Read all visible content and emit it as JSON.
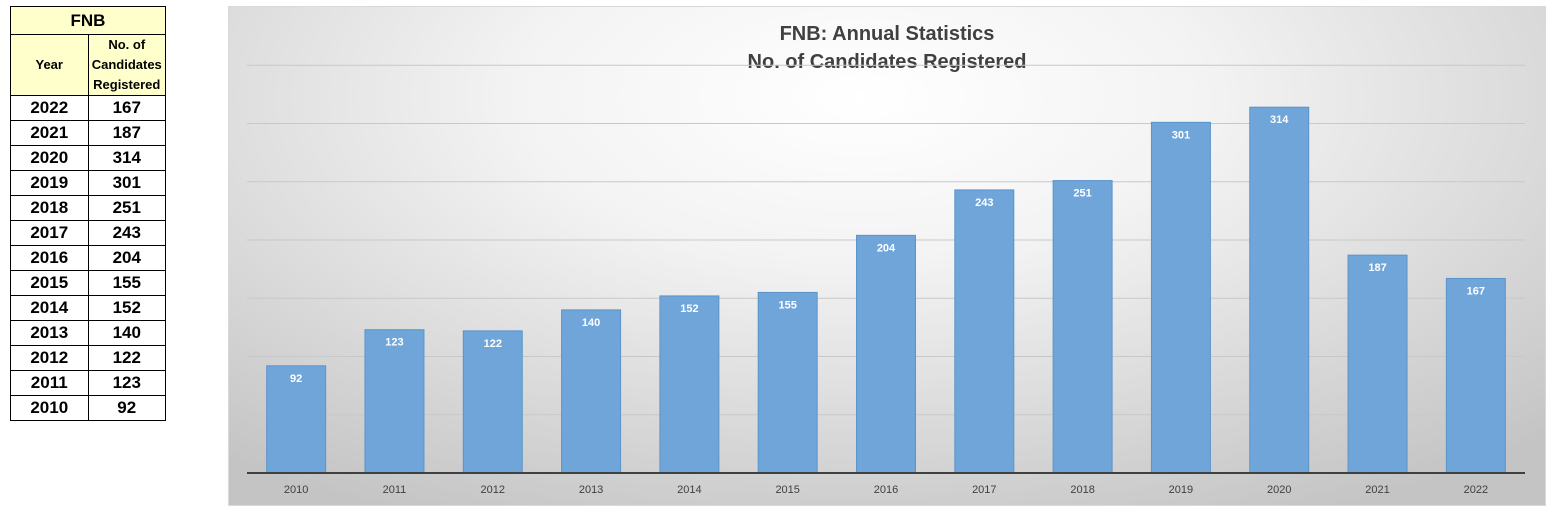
{
  "table": {
    "title": "FNB",
    "year_header": "Year",
    "count_header_lines": [
      "No. of",
      "Candidates",
      "Registered"
    ],
    "rows": [
      {
        "year": "2022",
        "count": "167"
      },
      {
        "year": "2021",
        "count": "187"
      },
      {
        "year": "2020",
        "count": "314"
      },
      {
        "year": "2019",
        "count": "301"
      },
      {
        "year": "2018",
        "count": "251"
      },
      {
        "year": "2017",
        "count": "243"
      },
      {
        "year": "2016",
        "count": "204"
      },
      {
        "year": "2015",
        "count": "155"
      },
      {
        "year": "2014",
        "count": "152"
      },
      {
        "year": "2013",
        "count": "140"
      },
      {
        "year": "2012",
        "count": "122"
      },
      {
        "year": "2011",
        "count": "123"
      },
      {
        "year": "2010",
        "count": "92"
      }
    ]
  },
  "chart_data": {
    "type": "bar",
    "title_lines": [
      "FNB: Annual Statistics",
      "No. of Candidates Registered"
    ],
    "categories": [
      "2010",
      "2011",
      "2012",
      "2013",
      "2014",
      "2015",
      "2016",
      "2017",
      "2018",
      "2019",
      "2020",
      "2021",
      "2022"
    ],
    "values": [
      92,
      123,
      122,
      140,
      152,
      155,
      204,
      243,
      251,
      301,
      314,
      187,
      167
    ],
    "xlabel": "",
    "ylabel": "",
    "ylim": [
      0,
      400
    ],
    "gridlines": true,
    "data_labels": true,
    "bar_color": "#6fa5d9",
    "bar_edge_color": "#5b94cc"
  }
}
